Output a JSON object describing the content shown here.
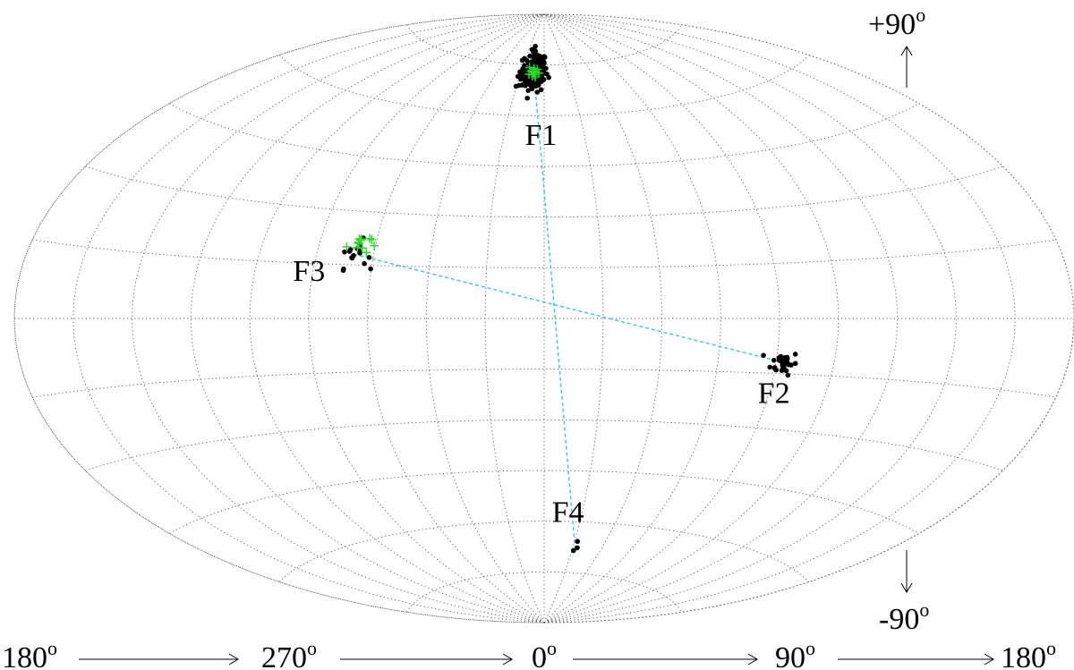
{
  "chart_data": {
    "type": "scatter",
    "projection": "aitoff",
    "grid": true,
    "colors": {
      "points": "#000000",
      "crosses": "#22dd22",
      "connector": "#33cccc",
      "grid": "#555555",
      "outline": "#555555"
    },
    "top_axis_label": {
      "value": "+90",
      "sup": "o"
    },
    "bottom_axis_label": {
      "value": "-90",
      "sup": "o"
    },
    "x_tick_labels": [
      {
        "value": "180",
        "sup": "o"
      },
      {
        "value": "270",
        "sup": "o"
      },
      {
        "value": "0",
        "sup": "o"
      },
      {
        "value": "90",
        "sup": "o"
      },
      {
        "value": "180",
        "sup": "o"
      }
    ],
    "clusters": [
      {
        "label": "F1",
        "center": [
          -9,
          73
        ],
        "n": 150,
        "spread": [
          6,
          3
        ]
      },
      {
        "label": "F2",
        "center": [
          83,
          -12
        ],
        "n": 34,
        "spread": [
          2.2,
          1.6
        ]
      },
      {
        "label": "F3",
        "center": [
          -67,
          18
        ],
        "n": 16,
        "spread": [
          2.5,
          2
        ]
      },
      {
        "label": "F4",
        "center": [
          22,
          -68
        ],
        "n": 3,
        "spread": [
          1,
          1
        ]
      }
    ],
    "crosses": [
      {
        "cluster": "F1",
        "center": [
          -9,
          73
        ],
        "n": 14,
        "spread": [
          2.5,
          1
        ]
      },
      {
        "cluster": "F3",
        "center": [
          -66,
          21
        ],
        "n": 12,
        "spread": [
          2,
          1.5
        ]
      }
    ],
    "connectors": [
      {
        "from": "F1",
        "to": "F4",
        "points": [
          [
            -9,
            73
          ],
          [
            22,
            -68
          ]
        ]
      },
      {
        "from": "F3",
        "to": "F2",
        "points": [
          [
            -67,
            18
          ],
          [
            83,
            -12
          ]
        ]
      }
    ]
  }
}
